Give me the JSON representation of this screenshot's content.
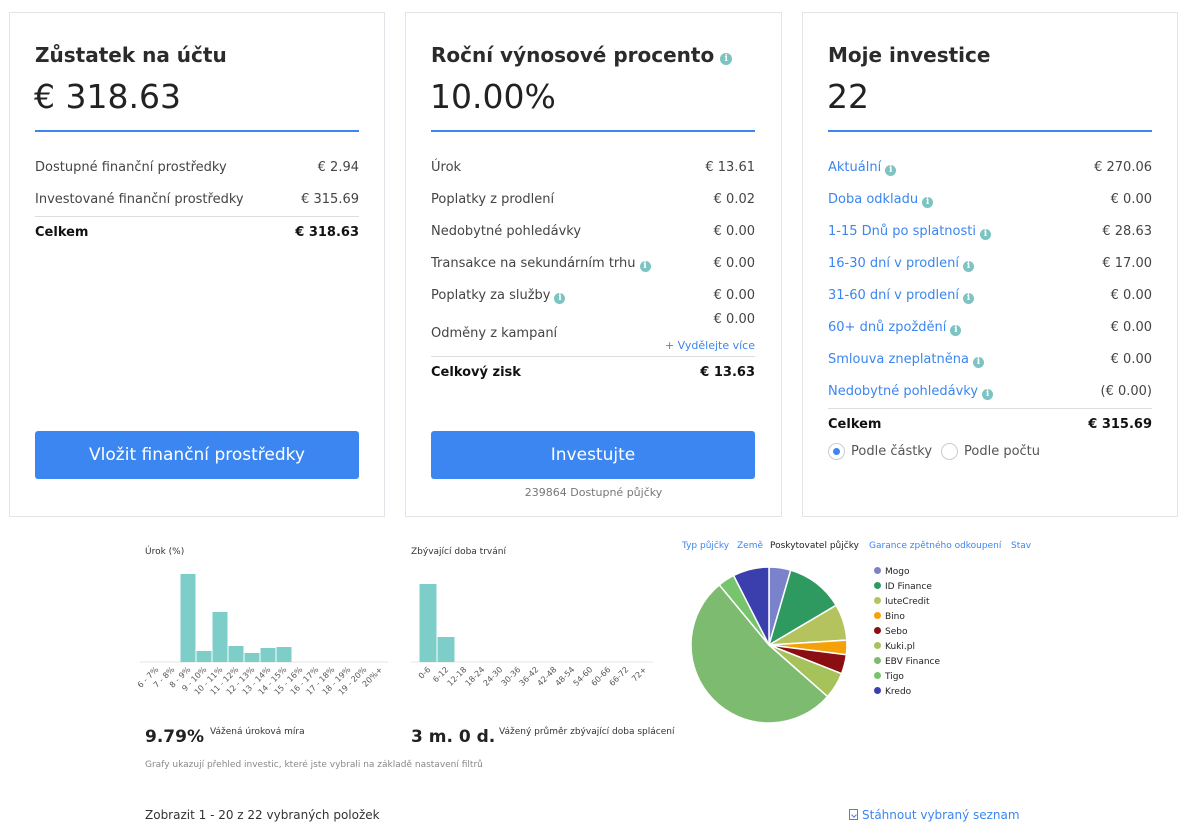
{
  "balance": {
    "title": "Zůstatek na účtu",
    "amount": "€ 318.63",
    "rows": [
      {
        "label": "Dostupné finanční prostředky",
        "value": "€ 2.94"
      },
      {
        "label": "Investované finanční prostředky",
        "value": "€ 315.69"
      }
    ],
    "total": {
      "label": "Celkem",
      "value": "€ 318.63"
    },
    "button": "Vložit finanční prostředky"
  },
  "yield": {
    "title": "Roční výnosové procento",
    "amount": "10.00%",
    "rows": [
      {
        "label": "Úrok",
        "value": "€ 13.61"
      },
      {
        "label": "Poplatky z prodlení",
        "value": "€ 0.02"
      },
      {
        "label": "Nedobytné pohledávky",
        "value": "€ 0.00"
      },
      {
        "label": "Transakce na sekundárním trhu",
        "value": "€ 0.00"
      },
      {
        "label": "Poplatky za služby",
        "value": "€ 0.00"
      },
      {
        "label": "Odměny z kampaní",
        "value": "€ 0.00",
        "sub": "+ Vydělejte více"
      }
    ],
    "total": {
      "label": "Celkový zisk",
      "value": "€ 13.63"
    },
    "button": "Investujte",
    "available": "239864 Dostupné půjčky"
  },
  "investments": {
    "title": "Moje investice",
    "amount": "22",
    "rows": [
      {
        "label": "Aktuální",
        "value": "€ 270.06"
      },
      {
        "label": "Doba odkladu",
        "value": "€ 0.00"
      },
      {
        "label": "1-15 Dnů po splatnosti",
        "value": "€ 28.63"
      },
      {
        "label": "16-30 dní v prodlení",
        "value": "€ 17.00"
      },
      {
        "label": "31-60 dní v prodlení",
        "value": "€ 0.00"
      },
      {
        "label": "60+ dnů zpoždění",
        "value": "€ 0.00"
      },
      {
        "label": "Smlouva zneplatněna",
        "value": "€ 0.00"
      },
      {
        "label": "Nedobytné pohledávky",
        "value": "(€ 0.00)"
      }
    ],
    "total": {
      "label": "Celkem",
      "value": "€ 315.69"
    },
    "radio_amount": "Podle částky",
    "radio_count": "Podle počtu"
  },
  "chart_data": [
    {
      "type": "bar",
      "title": "Úrok (%)",
      "categories": [
        "6 - 7%",
        "7 - 8%",
        "8 - 9%",
        "9 - 10%",
        "10 - 11%",
        "11 - 12%",
        "12 - 13%",
        "13 - 14%",
        "14 - 15%",
        "15 - 16%",
        "16 - 17%",
        "17 - 18%",
        "18 - 19%",
        "19 - 20%",
        "20%+"
      ],
      "values": [
        0,
        0,
        88,
        11,
        50,
        16,
        9,
        14,
        15,
        0,
        0,
        0,
        0,
        0,
        0
      ],
      "color": "#7dcdc9"
    },
    {
      "type": "bar",
      "title": "Zbývající doba trvání",
      "categories": [
        "0-6",
        "6-12",
        "12-18",
        "18-24",
        "24-30",
        "30-36",
        "36-42",
        "42-48",
        "48-54",
        "54-60",
        "60-66",
        "66-72",
        "72+"
      ],
      "values": [
        78,
        25,
        0,
        0,
        0,
        0,
        0,
        0,
        0,
        0,
        0,
        0,
        0
      ],
      "color": "#7dcdc9"
    },
    {
      "type": "pie",
      "title": "Poskytovatel půjček",
      "series": [
        {
          "name": "Mogo",
          "value": 4.5,
          "color": "#7b82cc"
        },
        {
          "name": "ID Finance",
          "value": 12.0,
          "color": "#2e9a5f"
        },
        {
          "name": "IuteCredit",
          "value": 7.5,
          "color": "#b5c35f"
        },
        {
          "name": "Bino",
          "value": 3.0,
          "color": "#f5a20a"
        },
        {
          "name": "Sebo",
          "value": 4.0,
          "color": "#8b0f12"
        },
        {
          "name": "Kuki.pl",
          "value": 5.5,
          "color": "#a6c25b"
        },
        {
          "name": "EBV Finance",
          "value": 52.5,
          "color": "#7cbb70"
        },
        {
          "name": "Tigo",
          "value": 3.5,
          "color": "#76c46b"
        },
        {
          "name": "Kredo",
          "value": 7.5,
          "color": "#3b3fad"
        }
      ]
    }
  ],
  "stats": {
    "rate_value": "9.79%",
    "rate_label": "Vážená úroková míra",
    "term_value": "3 m. 0 d.",
    "term_label": "Vážený průměr zbývající doba splácení",
    "note": "Grafy ukazují přehled investic, které jste vybrali na základě nastavení filtrů"
  },
  "tabs": [
    "Typ půjčky",
    "Země",
    "Poskytovatel půjčky",
    "Garance zpětného odkoupení",
    "Stav"
  ],
  "footer": {
    "showing": "Zobrazit 1 - 20 z 22 vybraných položek",
    "download": "Stáhnout vybraný seznam"
  }
}
